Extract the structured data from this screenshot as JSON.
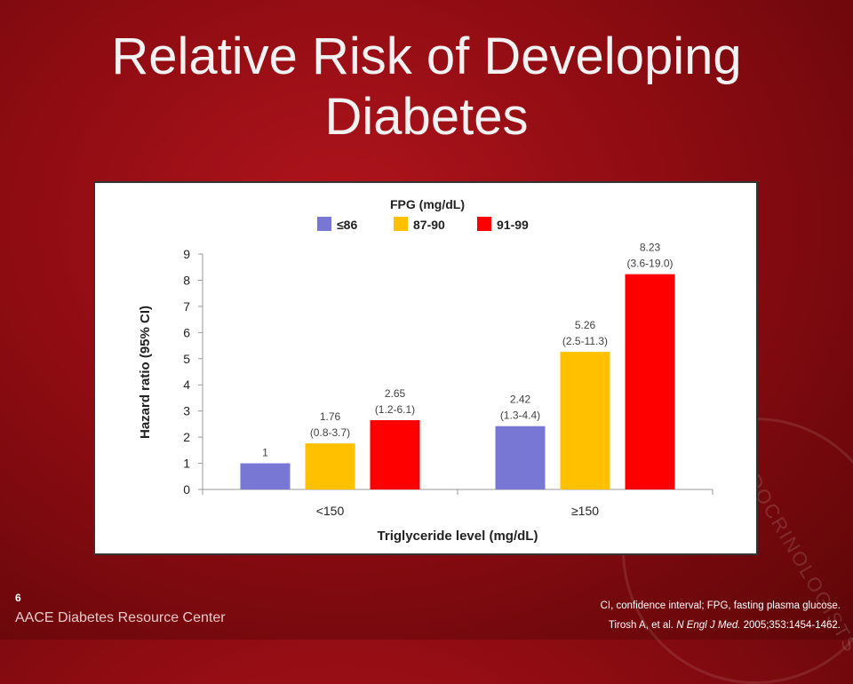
{
  "slide": {
    "title_line1": "Relative Risk of Developing",
    "title_line2": "Diabetes",
    "page_number": "6",
    "brand": "AACE Diabetes Resource Center",
    "seal_text": "ENDOCRINOLOGISTS"
  },
  "footnotes": {
    "abbrev": "CI, confidence interval; FPG, fasting plasma glucose.",
    "citation_authors": "Tirosh A, et al.",
    "citation_journal": "N Engl J Med.",
    "citation_details": "2005;353:1454-1462."
  },
  "chart_data": {
    "type": "bar",
    "legend_title": "FPG (mg/dL)",
    "legend_position": "top",
    "categories": [
      "<150",
      "≥150"
    ],
    "series": [
      {
        "name": "≤86",
        "color": "#7878d4",
        "values": [
          1,
          2.42
        ],
        "labels": [
          "1",
          "2.42"
        ],
        "ci": [
          "",
          "(1.3-4.4)"
        ]
      },
      {
        "name": "87-90",
        "color": "#ffc000",
        "values": [
          1.76,
          5.26
        ],
        "labels": [
          "1.76",
          "5.26"
        ],
        "ci": [
          "(0.8-3.7)",
          "(2.5-11.3)"
        ]
      },
      {
        "name": "91-99",
        "color": "#ff0000",
        "values": [
          2.65,
          8.23
        ],
        "labels": [
          "2.65",
          "8.23"
        ],
        "ci": [
          "(1.2-6.1)",
          "(3.6-19.0)"
        ]
      }
    ],
    "xlabel": "Triglyceride level (mg/dL)",
    "ylabel": "Hazard ratio (95% CI)",
    "ylim": [
      0,
      9
    ],
    "yticks": [
      "0",
      "1",
      "2",
      "3",
      "4",
      "5",
      "6",
      "7",
      "8",
      "9"
    ],
    "grid": false
  }
}
